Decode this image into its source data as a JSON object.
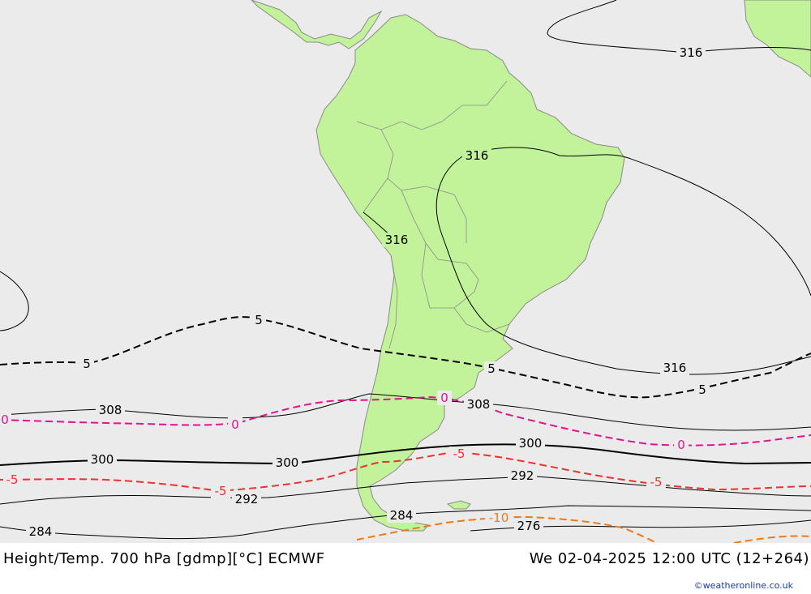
{
  "title": "Height/Temp. 700 hPa [gdmp][°C] ECMWF",
  "valid_time": "We 02-04-2025 12:00 UTC (12+264)",
  "credit": "©weatheronline.co.uk",
  "colors": {
    "ocean": "#ebebeb",
    "land": "#c2f29a",
    "height_contour": "#000000",
    "temp_0": "#e0148c",
    "temp_minus5": "#ee3030",
    "temp_minus10": "#f07818"
  },
  "height_labels": {
    "h316a": "316",
    "h316b": "316",
    "h316c": "316",
    "h316d": "316",
    "h308a": "308",
    "h308b": "308",
    "h300a": "300",
    "h300b": "300",
    "h300c": "300",
    "h292a": "292",
    "h292b": "292",
    "h284a": "284",
    "h284b": "284",
    "h276": "276"
  },
  "temp_labels": {
    "t5a": "5",
    "t5b": "5",
    "t5c": "5",
    "t5d": "5",
    "t0a": "0",
    "t0b": "0",
    "t0c": "0",
    "t0d": "0",
    "tm5a": "-5",
    "tm5b": "-5",
    "tm5c": "-5",
    "tm5d": "-5",
    "tm10": "-10"
  }
}
